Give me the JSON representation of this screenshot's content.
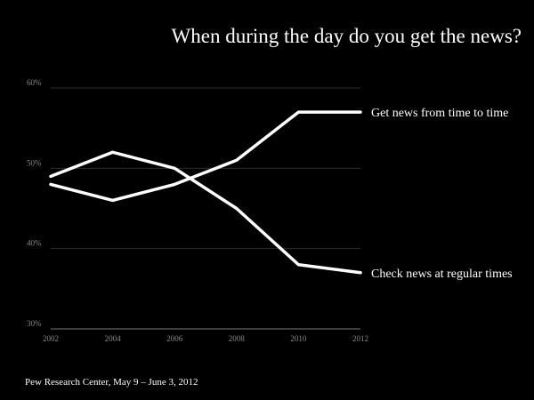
{
  "chart_data": {
    "type": "line",
    "title": "When during the day do you get the news?",
    "x": [
      "2002",
      "2004",
      "2006",
      "2008",
      "2010",
      "2012"
    ],
    "y_ticks": [
      "30%",
      "40%",
      "50%",
      "60%"
    ],
    "ylim": [
      30,
      60
    ],
    "grid": true,
    "series": [
      {
        "name": "Get news from time to time",
        "values": [
          48,
          46,
          48,
          51,
          57,
          57
        ]
      },
      {
        "name": "Check news at regular times",
        "values": [
          49,
          52,
          50,
          45,
          38,
          37
        ]
      }
    ],
    "source": "Pew Research Center, May 9 – June 3, 2012"
  }
}
